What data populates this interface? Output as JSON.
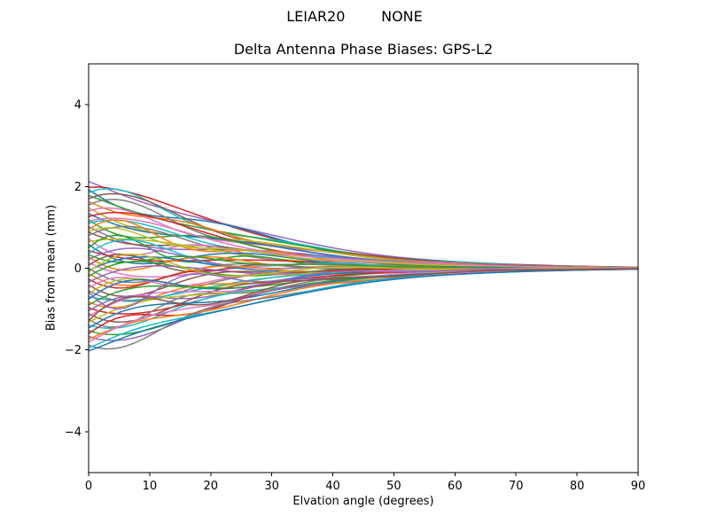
{
  "window": {
    "background": "#ffffff"
  },
  "chart_data": {
    "type": "line",
    "suptitle": "LEIAR20        NONE",
    "title": "Delta Antenna Phase Biases: GPS-L2",
    "xlabel": "Elvation angle (degrees)",
    "ylabel": "Bias from mean (mm)",
    "xlim": [
      0,
      90
    ],
    "ylim": [
      -5,
      5
    ],
    "xticks": [
      0,
      10,
      20,
      30,
      40,
      50,
      60,
      70,
      80,
      90
    ],
    "yticks": [
      -4,
      -2,
      0,
      2,
      4
    ],
    "grid": false,
    "legend": "none",
    "axis_color": "#000000",
    "text_color": "#000000",
    "line_width": 1.5,
    "palette": [
      "#1f77b4",
      "#ff7f0e",
      "#2ca02c",
      "#d62728",
      "#9467bd",
      "#8c564b",
      "#e377c2",
      "#7f7f7f",
      "#bcbd22",
      "#17becf"
    ],
    "sample_step_deg": 1.5,
    "decay_scale_deg": 30,
    "decay_power": 1.35,
    "wiggle_decay_deg": 16,
    "converge_to_mm": 0,
    "converged_by_deg": 75,
    "start_envelope_mm": [
      -2.05,
      2.12
    ],
    "series_keys": [
      "start_mm",
      "wiggle_amp_mm",
      "wiggle_freq_rad_per_deg",
      "color_index"
    ],
    "series": [
      [
        2.12,
        -0.25,
        0.14,
        4
      ],
      [
        1.98,
        0.3,
        0.1,
        3
      ],
      [
        1.92,
        -0.45,
        0.18,
        0
      ],
      [
        1.85,
        0.35,
        0.22,
        9
      ],
      [
        1.78,
        -0.3,
        0.12,
        2
      ],
      [
        1.7,
        0.5,
        0.16,
        5
      ],
      [
        1.63,
        -0.2,
        0.26,
        1
      ],
      [
        1.55,
        0.42,
        0.2,
        7
      ],
      [
        1.48,
        -0.55,
        0.13,
        8
      ],
      [
        1.4,
        0.25,
        0.24,
        6
      ],
      [
        1.33,
        -0.35,
        0.15,
        0
      ],
      [
        1.26,
        0.55,
        0.11,
        3
      ],
      [
        1.18,
        -0.42,
        0.21,
        2
      ],
      [
        1.1,
        0.3,
        0.17,
        9
      ],
      [
        1.02,
        -0.6,
        0.12,
        4
      ],
      [
        0.95,
        0.45,
        0.25,
        1
      ],
      [
        0.88,
        -0.28,
        0.19,
        5
      ],
      [
        0.8,
        0.6,
        0.14,
        7
      ],
      [
        0.72,
        -0.5,
        0.23,
        6
      ],
      [
        0.65,
        0.35,
        0.1,
        8
      ],
      [
        0.58,
        -0.65,
        0.16,
        0
      ],
      [
        0.5,
        0.48,
        0.28,
        2
      ],
      [
        0.43,
        -0.3,
        0.13,
        3
      ],
      [
        0.36,
        0.62,
        0.18,
        9
      ],
      [
        0.28,
        -0.45,
        0.22,
        1
      ],
      [
        0.21,
        0.55,
        0.15,
        4
      ],
      [
        0.14,
        -0.68,
        0.11,
        6
      ],
      [
        0.07,
        0.4,
        0.26,
        5
      ],
      [
        0.0,
        -0.58,
        0.17,
        7
      ],
      [
        0.9,
        0.2,
        0.3,
        8
      ],
      [
        0.33,
        -0.22,
        0.27,
        2
      ],
      [
        1.15,
        0.38,
        0.13,
        6
      ],
      [
        -0.06,
        0.65,
        0.12,
        0
      ],
      [
        -0.13,
        -0.48,
        0.2,
        1
      ],
      [
        -0.2,
        0.58,
        0.16,
        2
      ],
      [
        -0.27,
        -0.35,
        0.24,
        3
      ],
      [
        -0.34,
        0.68,
        0.11,
        4
      ],
      [
        -0.41,
        -0.52,
        0.19,
        5
      ],
      [
        -0.48,
        0.3,
        0.28,
        6
      ],
      [
        -0.55,
        -0.62,
        0.14,
        7
      ],
      [
        -0.62,
        0.45,
        0.21,
        8
      ],
      [
        -0.69,
        -0.38,
        0.12,
        9
      ],
      [
        -0.76,
        0.6,
        0.18,
        0
      ],
      [
        -0.83,
        -0.28,
        0.25,
        1
      ],
      [
        -0.9,
        0.52,
        0.15,
        2
      ],
      [
        -0.97,
        -0.65,
        0.1,
        3
      ],
      [
        -1.04,
        0.35,
        0.23,
        4
      ],
      [
        -1.11,
        -0.55,
        0.17,
        5
      ],
      [
        -1.18,
        0.62,
        0.13,
        6
      ],
      [
        -1.25,
        -0.4,
        0.27,
        7
      ],
      [
        -1.32,
        0.55,
        0.12,
        8
      ],
      [
        -1.39,
        -0.3,
        0.2,
        9
      ],
      [
        -1.46,
        0.48,
        0.16,
        0
      ],
      [
        -1.53,
        -0.58,
        0.11,
        2
      ],
      [
        -1.6,
        0.38,
        0.24,
        3
      ],
      [
        -1.67,
        -0.5,
        0.14,
        4
      ],
      [
        -1.74,
        0.28,
        0.19,
        1
      ],
      [
        -1.81,
        0.55,
        0.12,
        6
      ],
      [
        -1.88,
        -0.35,
        0.22,
        7
      ],
      [
        -1.95,
        0.3,
        0.15,
        9
      ],
      [
        -2.02,
        0.25,
        0.13,
        0
      ],
      [
        -0.1,
        0.7,
        0.18,
        8
      ],
      [
        -0.58,
        -0.66,
        0.26,
        4
      ],
      [
        -1.28,
        0.64,
        0.21,
        5
      ]
    ]
  }
}
